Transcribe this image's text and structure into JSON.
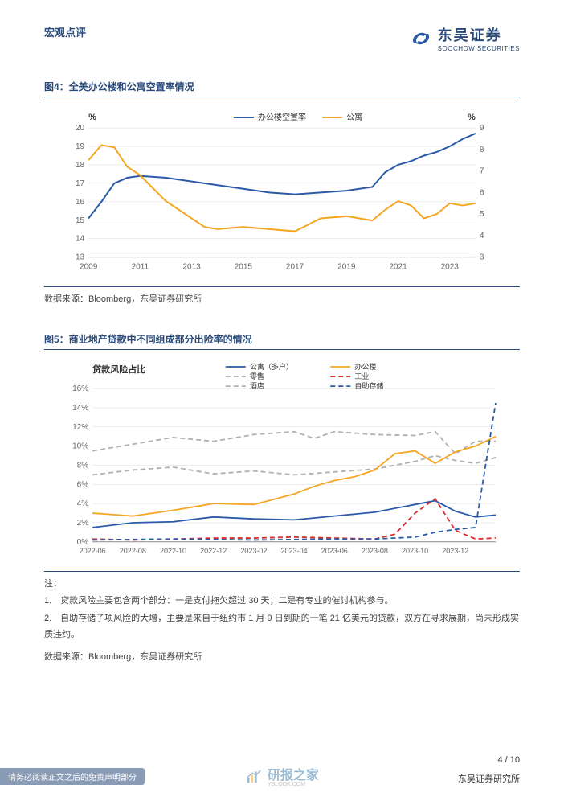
{
  "header": {
    "category": "宏观点评",
    "logo_cn": "东吴证券",
    "logo_en": "SOOCHOW SECURITIES"
  },
  "figure4": {
    "title": "图4：全美办公楼和公寓空置率情况",
    "left_unit": "%",
    "right_unit": "%",
    "legend": [
      "办公楼空置率",
      "公寓"
    ],
    "legend_colors": [
      "#2a5aa8",
      "#f5a623"
    ],
    "x_labels": [
      "2009",
      "2011",
      "2013",
      "2015",
      "2017",
      "2019",
      "2021",
      "2023"
    ],
    "left_ticks": [
      13,
      14,
      15,
      16,
      17,
      18,
      19,
      20
    ],
    "right_ticks": [
      3,
      4,
      5,
      6,
      7,
      8,
      9
    ],
    "left_ylim": [
      13,
      20
    ],
    "right_ylim": [
      3,
      9
    ],
    "line1_color": "#2a5aa8",
    "line2_color": "#f5a623",
    "line1": [
      [
        2009,
        15.1
      ],
      [
        2009.5,
        16.0
      ],
      [
        2010,
        17.0
      ],
      [
        2010.5,
        17.3
      ],
      [
        2011,
        17.4
      ],
      [
        2012,
        17.3
      ],
      [
        2013,
        17.1
      ],
      [
        2014,
        16.9
      ],
      [
        2015,
        16.7
      ],
      [
        2016,
        16.5
      ],
      [
        2017,
        16.4
      ],
      [
        2018,
        16.5
      ],
      [
        2019,
        16.6
      ],
      [
        2019.5,
        16.7
      ],
      [
        2020,
        16.8
      ],
      [
        2020.5,
        17.6
      ],
      [
        2021,
        18.0
      ],
      [
        2021.5,
        18.2
      ],
      [
        2022,
        18.5
      ],
      [
        2022.5,
        18.7
      ],
      [
        2023,
        19.0
      ],
      [
        2023.5,
        19.4
      ],
      [
        2024,
        19.7
      ]
    ],
    "line2": [
      [
        2009,
        7.5
      ],
      [
        2009.5,
        8.2
      ],
      [
        2010,
        8.1
      ],
      [
        2010.5,
        7.2
      ],
      [
        2011,
        6.8
      ],
      [
        2012,
        5.6
      ],
      [
        2013,
        4.8
      ],
      [
        2013.5,
        4.4
      ],
      [
        2014,
        4.3
      ],
      [
        2015,
        4.4
      ],
      [
        2016,
        4.3
      ],
      [
        2017,
        4.2
      ],
      [
        2017.5,
        4.5
      ],
      [
        2018,
        4.8
      ],
      [
        2019,
        4.9
      ],
      [
        2019.5,
        4.8
      ],
      [
        2020,
        4.7
      ],
      [
        2020.5,
        5.2
      ],
      [
        2021,
        5.6
      ],
      [
        2021.5,
        5.4
      ],
      [
        2022,
        4.8
      ],
      [
        2022.5,
        5.0
      ],
      [
        2023,
        5.5
      ],
      [
        2023.5,
        5.4
      ],
      [
        2024,
        5.5
      ]
    ],
    "source": "数据来源：Bloomberg，东吴证券研究所",
    "grid_color": "#d8d8d8",
    "bg": "#ffffff"
  },
  "figure5": {
    "title": "图5：商业地产贷款中不同组成部分出险率的情况",
    "ylabel": "贷款风险占比",
    "legend": [
      {
        "label": "公寓（多户）",
        "color": "#2a5aa8",
        "dash": "none"
      },
      {
        "label": "办公楼",
        "color": "#f5a623",
        "dash": "none"
      },
      {
        "label": "零售",
        "color": "#b0b0b0",
        "dash": "6,4"
      },
      {
        "label": "工业",
        "color": "#d92e2e",
        "dash": "6,4"
      },
      {
        "label": "酒店",
        "color": "#b0b0b0",
        "dash": "6,4"
      },
      {
        "label": "自助存储",
        "color": "#2a5aa8",
        "dash": "6,4"
      }
    ],
    "x_labels": [
      "2022-06",
      "2022-08",
      "2022-10",
      "2022-12",
      "2023-02",
      "2023-04",
      "2023-06",
      "2023-08",
      "2023-10",
      "2023-12"
    ],
    "y_ticks": [
      0,
      2,
      4,
      6,
      8,
      10,
      12,
      14,
      16
    ],
    "ylim": [
      0,
      16
    ],
    "bg": "#ffffff",
    "grid_color": "#d8d8d8",
    "series": {
      "apartment": {
        "color": "#2a5aa8",
        "dash": "none",
        "data": [
          [
            0,
            1.5
          ],
          [
            1,
            2.0
          ],
          [
            2,
            2.1
          ],
          [
            3,
            2.6
          ],
          [
            4,
            2.4
          ],
          [
            5,
            2.3
          ],
          [
            6,
            2.7
          ],
          [
            7,
            3.1
          ],
          [
            8,
            3.9
          ],
          [
            8.5,
            4.3
          ],
          [
            9,
            3.2
          ],
          [
            9.5,
            2.6
          ],
          [
            10,
            2.8
          ]
        ]
      },
      "office": {
        "color": "#f5a623",
        "dash": "none",
        "data": [
          [
            0,
            3.0
          ],
          [
            1,
            2.7
          ],
          [
            2,
            3.3
          ],
          [
            3,
            4.0
          ],
          [
            4,
            3.9
          ],
          [
            5,
            5.0
          ],
          [
            5.5,
            5.8
          ],
          [
            6,
            6.4
          ],
          [
            6.5,
            6.8
          ],
          [
            7,
            7.5
          ],
          [
            7.5,
            9.2
          ],
          [
            8,
            9.5
          ],
          [
            8.5,
            8.2
          ],
          [
            9,
            9.4
          ],
          [
            9.5,
            10.0
          ],
          [
            10,
            11.0
          ]
        ]
      },
      "retail": {
        "color": "#b0b0b0",
        "dash": "6,4",
        "data": [
          [
            0,
            9.5
          ],
          [
            1,
            10.2
          ],
          [
            2,
            10.9
          ],
          [
            3,
            10.5
          ],
          [
            4,
            11.2
          ],
          [
            5,
            11.5
          ],
          [
            5.5,
            10.8
          ],
          [
            6,
            11.5
          ],
          [
            7,
            11.2
          ],
          [
            8,
            11.1
          ],
          [
            8.5,
            11.5
          ],
          [
            9,
            9.2
          ],
          [
            9.5,
            10.5
          ],
          [
            10,
            10.5
          ]
        ]
      },
      "industrial": {
        "color": "#d92e2e",
        "dash": "6,4",
        "data": [
          [
            0,
            0.3
          ],
          [
            1,
            0.2
          ],
          [
            2,
            0.3
          ],
          [
            3,
            0.4
          ],
          [
            4,
            0.4
          ],
          [
            5,
            0.5
          ],
          [
            6,
            0.4
          ],
          [
            7,
            0.3
          ],
          [
            7.5,
            0.8
          ],
          [
            8,
            3.0
          ],
          [
            8.5,
            4.5
          ],
          [
            9,
            1.2
          ],
          [
            9.5,
            0.3
          ],
          [
            10,
            0.4
          ]
        ]
      },
      "hotel": {
        "color": "#b0b0b0",
        "dash": "6,4",
        "data": [
          [
            0,
            7.0
          ],
          [
            1,
            7.5
          ],
          [
            2,
            7.8
          ],
          [
            3,
            7.1
          ],
          [
            4,
            7.4
          ],
          [
            5,
            7.0
          ],
          [
            6,
            7.3
          ],
          [
            7,
            7.6
          ],
          [
            8,
            8.4
          ],
          [
            8.5,
            9.0
          ],
          [
            9,
            8.5
          ],
          [
            9.5,
            8.2
          ],
          [
            10,
            8.8
          ]
        ]
      },
      "storage": {
        "color": "#2a5aa8",
        "dash": "6,4",
        "data": [
          [
            0,
            0.2
          ],
          [
            2,
            0.3
          ],
          [
            4,
            0.2
          ],
          [
            6,
            0.3
          ],
          [
            7,
            0.3
          ],
          [
            8,
            0.5
          ],
          [
            8.5,
            1.0
          ],
          [
            9,
            1.3
          ],
          [
            9.5,
            1.5
          ],
          [
            10,
            14.5
          ]
        ]
      }
    },
    "notes_title": "注：",
    "notes": [
      "1.　贷款风险主要包含两个部分：一是支付拖欠超过 30 天；二是有专业的催讨机构参与。",
      "2.　自助存储子项风险的大增，主要是来自于纽约市 1 月 9 日到期的一笔 21 亿美元的贷款，双方在寻求展期，尚未形成实质违约。"
    ],
    "source": "数据来源：Bloomberg，东吴证券研究所"
  },
  "footer": {
    "disclaimer": "请务必阅读正文之后的免责声明部分",
    "research": "东吴证券研究所",
    "page": "4 / 10"
  },
  "watermark": {
    "text": "研报之家",
    "sub": "YBLOOK.COM"
  }
}
